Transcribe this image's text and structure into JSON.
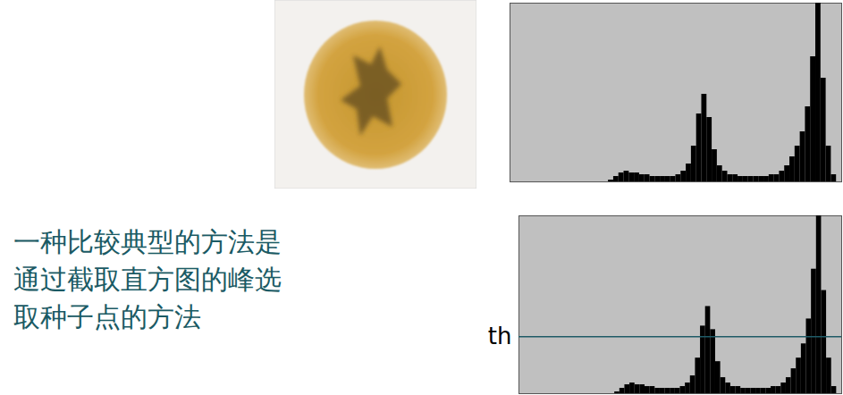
{
  "text": [
    "一种比较典型的方法是",
    "通过截取直方图的峰选",
    "取种子点的方法"
  ],
  "chart_data": [
    {
      "type": "histogram",
      "bins": [
        0,
        4,
        8,
        12,
        16,
        20,
        24,
        28,
        32,
        36,
        40,
        44,
        48,
        52,
        56,
        60,
        64,
        68,
        72,
        76,
        80,
        84,
        88,
        92,
        96,
        100,
        104,
        108,
        112,
        116,
        120,
        124,
        128,
        132,
        136,
        140,
        144,
        148,
        152,
        156,
        160,
        164,
        168,
        172,
        176,
        180,
        184,
        188,
        192,
        196,
        200,
        204,
        208,
        212,
        216,
        220,
        224,
        228,
        232,
        236,
        240,
        244,
        248,
        252,
        256
      ],
      "counts": [
        0,
        0,
        0,
        0,
        0,
        0,
        0,
        0,
        0,
        0,
        0,
        0,
        0,
        0,
        0,
        0,
        0,
        0,
        0,
        1,
        3,
        5,
        6,
        5,
        5,
        4,
        4,
        3,
        3,
        3,
        3,
        3,
        4,
        6,
        10,
        20,
        38,
        49,
        36,
        18,
        9,
        6,
        4,
        4,
        3,
        3,
        3,
        3,
        3,
        3,
        4,
        4,
        6,
        9,
        14,
        20,
        28,
        42,
        70,
        100,
        58,
        20,
        4,
        0
      ],
      "color": "#000000",
      "xlim": [
        0,
        256
      ],
      "ylim": [
        0,
        100
      ],
      "tick_labels": false
    },
    {
      "type": "histogram",
      "bins": [
        0,
        4,
        8,
        12,
        16,
        20,
        24,
        28,
        32,
        36,
        40,
        44,
        48,
        52,
        56,
        60,
        64,
        68,
        72,
        76,
        80,
        84,
        88,
        92,
        96,
        100,
        104,
        108,
        112,
        116,
        120,
        124,
        128,
        132,
        136,
        140,
        144,
        148,
        152,
        156,
        160,
        164,
        168,
        172,
        176,
        180,
        184,
        188,
        192,
        196,
        200,
        204,
        208,
        212,
        216,
        220,
        224,
        228,
        232,
        236,
        240,
        244,
        248,
        252,
        256
      ],
      "counts": [
        0,
        0,
        0,
        0,
        0,
        0,
        0,
        0,
        0,
        0,
        0,
        0,
        0,
        0,
        0,
        0,
        0,
        0,
        0,
        1,
        3,
        5,
        6,
        5,
        5,
        4,
        4,
        3,
        3,
        3,
        3,
        3,
        4,
        6,
        10,
        20,
        38,
        49,
        36,
        18,
        9,
        6,
        4,
        4,
        3,
        3,
        3,
        3,
        3,
        3,
        4,
        4,
        6,
        9,
        14,
        20,
        28,
        42,
        70,
        100,
        58,
        20,
        4,
        0
      ],
      "color": "#000000",
      "xlim": [
        0,
        256
      ],
      "ylim": [
        0,
        100
      ],
      "tick_labels": false,
      "annotations": [
        {
          "text": "th",
          "y": 32
        }
      ]
    }
  ]
}
